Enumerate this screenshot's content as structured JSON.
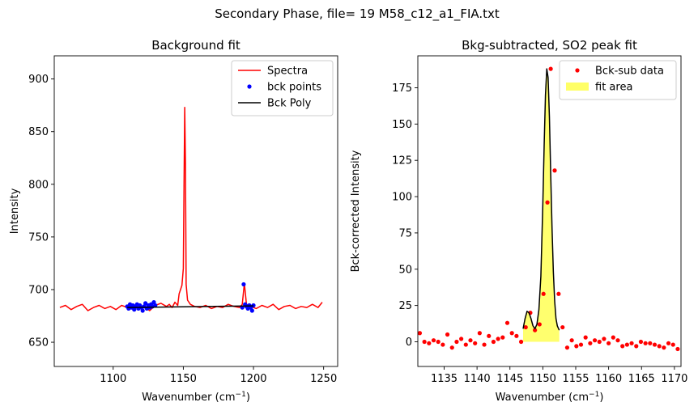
{
  "figure": {
    "suptitle": "Secondary Phase, file= 19 M58_c12_a1_FIA.txt"
  },
  "chart_data": [
    {
      "type": "line",
      "title": "Background fit",
      "xlabel": "Wavenumber (cm",
      "xlabel_sup": "−1",
      "xlabel_end": ")",
      "ylabel": "Intensity",
      "xlim": [
        1058,
        1260
      ],
      "ylim": [
        627,
        922
      ],
      "xticks": [
        1100,
        1150,
        1200,
        1250
      ],
      "yticks": [
        650,
        700,
        750,
        800,
        850,
        900
      ],
      "legend": {
        "position": "top-right",
        "entries": [
          "Spectra",
          "bck points",
          "Bck Poly"
        ]
      },
      "series": [
        {
          "name": "Spectra",
          "style": "line",
          "color": "#ff0000",
          "x": [
            1062,
            1066,
            1070,
            1074,
            1078,
            1082,
            1086,
            1090,
            1094,
            1098,
            1102,
            1106,
            1110,
            1114,
            1118,
            1122,
            1126,
            1130,
            1134,
            1138,
            1140,
            1142,
            1144,
            1146,
            1147,
            1148,
            1149,
            1150,
            1150.5,
            1151,
            1151.5,
            1152,
            1153,
            1155,
            1158,
            1162,
            1166,
            1170,
            1174,
            1178,
            1182,
            1186,
            1190,
            1192,
            1193.5,
            1195,
            1198,
            1202,
            1206,
            1210,
            1214,
            1218,
            1222,
            1226,
            1230,
            1234,
            1238,
            1242,
            1246,
            1249
          ],
          "y": [
            683,
            685,
            681,
            684,
            686,
            680,
            683,
            685,
            682,
            684,
            681,
            685,
            683,
            686,
            682,
            684,
            680,
            685,
            687,
            684,
            686,
            683,
            688,
            685,
            696,
            700,
            704,
            720,
            800,
            873,
            820,
            705,
            690,
            686,
            684,
            683,
            685,
            682,
            684,
            683,
            686,
            684,
            683,
            686,
            706,
            686,
            684,
            682,
            685,
            683,
            686,
            681,
            684,
            685,
            682,
            684,
            683,
            686,
            683,
            688
          ]
        },
        {
          "name": "bck points",
          "style": "points",
          "color": "#0000ff",
          "x": [
            1110,
            1111,
            1112,
            1113,
            1114,
            1115,
            1116,
            1117,
            1118,
            1119,
            1120,
            1121,
            1122,
            1123,
            1124,
            1125,
            1126,
            1127,
            1128,
            1129,
            1130,
            1192,
            1193,
            1194,
            1195,
            1196,
            1197,
            1198,
            1199,
            1200
          ],
          "y": [
            684,
            682,
            686,
            683,
            685,
            681,
            684,
            686,
            682,
            685,
            683,
            680,
            684,
            687,
            682,
            685,
            683,
            686,
            684,
            688,
            685,
            683,
            705,
            686,
            684,
            682,
            685,
            683,
            680,
            685
          ]
        },
        {
          "name": "Bck Poly",
          "style": "line",
          "color": "#000000",
          "x": [
            1110,
            1200
          ],
          "y": [
            683,
            684.5
          ]
        }
      ]
    },
    {
      "type": "scatter",
      "title": "Bkg-subtracted, SO2 peak fit",
      "xlabel": "Wavenumber (cm",
      "xlabel_sup": "−1",
      "xlabel_end": ")",
      "ylabel": "Bck-corrected Intensity",
      "xlim": [
        1131,
        1171
      ],
      "ylim": [
        -17,
        197
      ],
      "xticks": [
        1135,
        1140,
        1145,
        1150,
        1155,
        1160,
        1165,
        1170
      ],
      "yticks": [
        0,
        25,
        50,
        75,
        100,
        125,
        150,
        175
      ],
      "legend": {
        "position": "top-right",
        "entries": [
          "Bck-sub data",
          "fit area"
        ]
      },
      "series": [
        {
          "name": "Bck-sub data",
          "style": "points",
          "color": "#ff0000",
          "x": [
            1131.3,
            1132,
            1132.7,
            1133.4,
            1134.1,
            1134.8,
            1135.5,
            1136.2,
            1136.9,
            1137.6,
            1138.3,
            1139,
            1139.7,
            1140.4,
            1141.1,
            1141.8,
            1142.5,
            1143.2,
            1143.9,
            1144.6,
            1145.3,
            1146,
            1146.7,
            1147.4,
            1148.1,
            1148.8,
            1149.5,
            1150.1,
            1150.7,
            1151.2,
            1151.8,
            1152.4,
            1153,
            1153.7,
            1154.4,
            1155.1,
            1155.8,
            1156.5,
            1157.2,
            1157.9,
            1158.6,
            1159.3,
            1160,
            1160.7,
            1161.4,
            1162.1,
            1162.8,
            1163.5,
            1164.2,
            1164.9,
            1165.6,
            1166.3,
            1167,
            1167.7,
            1168.4,
            1169.1,
            1169.8,
            1170.5
          ],
          "y": [
            6,
            0,
            -1,
            1,
            0,
            -2,
            5,
            -4,
            0,
            2,
            -2,
            1,
            -1,
            6,
            -2,
            4,
            0,
            2,
            3,
            13,
            6,
            4,
            0,
            10,
            20,
            8,
            12,
            33,
            96,
            188,
            118,
            33,
            10,
            -4,
            1,
            -3,
            -2,
            3,
            -1,
            1,
            0,
            2,
            -1,
            3,
            1,
            -3,
            -2,
            -1,
            -3,
            0,
            -1,
            -1,
            -2,
            -3,
            -4,
            -1,
            -2,
            -5
          ]
        },
        {
          "name": "fit",
          "style": "line",
          "color": "#000000",
          "x": [
            1147.0,
            1147.3,
            1147.6,
            1147.9,
            1148.2,
            1148.5,
            1148.8,
            1149.1,
            1149.4,
            1149.7,
            1150.0,
            1150.2,
            1150.4,
            1150.6,
            1150.8,
            1151.0,
            1151.2,
            1151.4,
            1151.6,
            1151.8,
            1152.0,
            1152.2,
            1152.5
          ],
          "y": [
            9,
            16,
            21,
            20,
            16,
            11,
            9,
            12,
            22,
            45,
            95,
            135,
            170,
            188,
            182,
            155,
            115,
            78,
            48,
            28,
            16,
            11,
            8
          ]
        },
        {
          "name": "fit area",
          "style": "area",
          "color": "#ffff66",
          "x": [
            1147.0,
            1147.3,
            1147.6,
            1147.9,
            1148.2,
            1148.5,
            1148.8,
            1149.1,
            1149.4,
            1149.7,
            1150.0,
            1150.2,
            1150.4,
            1150.6,
            1150.8,
            1151.0,
            1151.2,
            1151.4,
            1151.6,
            1151.8,
            1152.0,
            1152.2,
            1152.5
          ],
          "y": [
            9,
            16,
            21,
            20,
            16,
            11,
            9,
            12,
            22,
            45,
            95,
            135,
            170,
            188,
            182,
            155,
            115,
            78,
            48,
            28,
            16,
            11,
            8
          ]
        }
      ]
    }
  ]
}
